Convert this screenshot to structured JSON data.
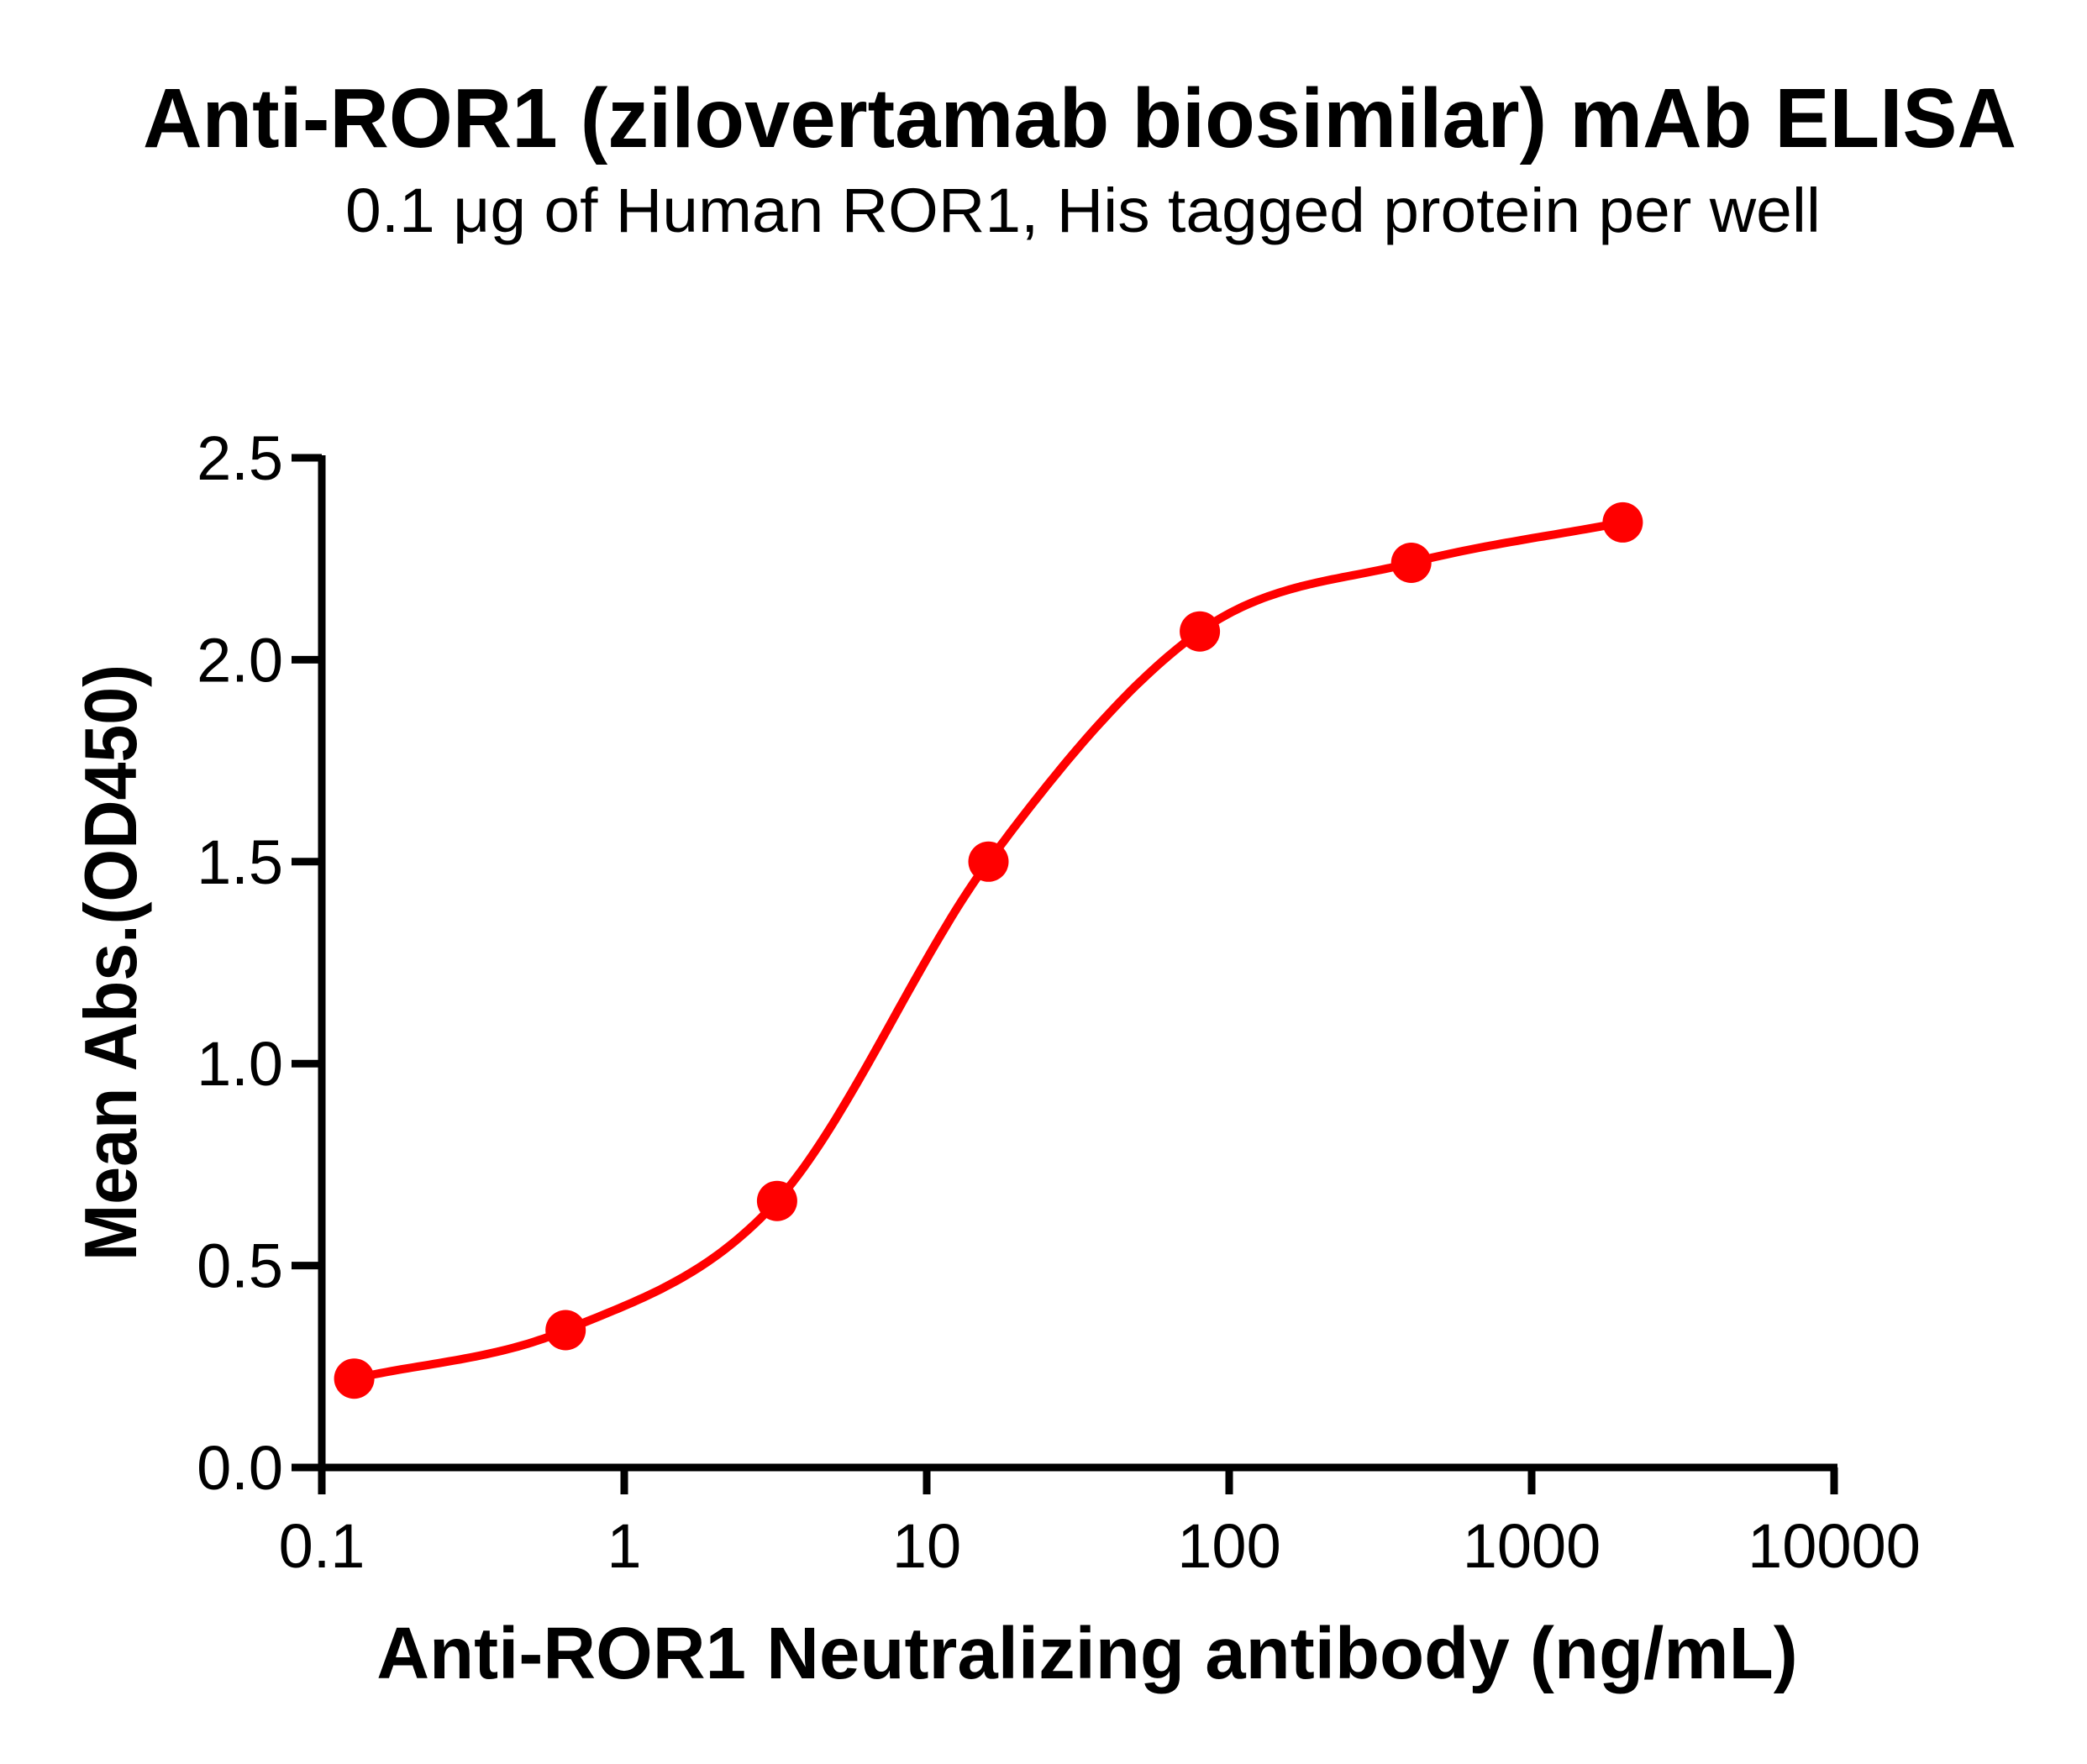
{
  "chart_data": {
    "type": "scatter",
    "title": "Anti-ROR1 (zilovertamab biosimilar) mAb ELISA",
    "subtitle": "0.1 μg of Human ROR1, His tagged protein per well",
    "xlabel": "Anti-ROR1 Neutralizing antibody (ng/mL)",
    "ylabel": "Mean Abs.(OD450)",
    "x_scale": "log10",
    "xlim": [
      0.1,
      10000
    ],
    "ylim": [
      0.0,
      2.5
    ],
    "x_ticks": {
      "values": [
        0.1,
        1,
        10,
        100,
        1000,
        10000
      ],
      "labels": [
        "0.1",
        "1",
        "10",
        "100",
        "1000",
        "10000"
      ]
    },
    "y_ticks": {
      "values": [
        0.0,
        0.5,
        1.0,
        1.5,
        2.0,
        2.5
      ],
      "labels": [
        "0.0",
        "0.5",
        "1.0",
        "1.5",
        "2.0",
        "2.5"
      ]
    },
    "grid": false,
    "legend": "none",
    "series": [
      {
        "marker": "circle",
        "color": "#FF0000",
        "curve": "smooth-sigmoid-through-points",
        "x": [
          0.128,
          0.64,
          3.2,
          16,
          80,
          400,
          2000
        ],
        "y": [
          0.22,
          0.34,
          0.66,
          1.5,
          2.07,
          2.24,
          2.34
        ]
      }
    ],
    "colors": {
      "axis": "#000000",
      "background": "#FFFFFF"
    }
  }
}
